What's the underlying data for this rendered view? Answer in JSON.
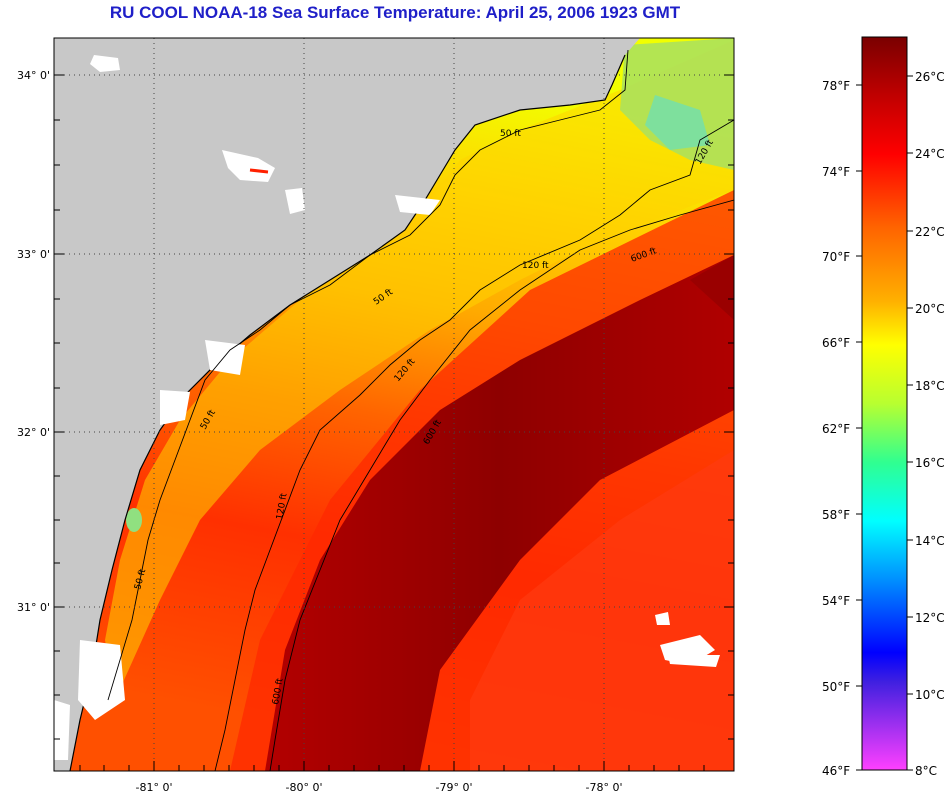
{
  "title": "RU COOL  NOAA-18  Sea Surface Temperature:  April 25, 2006 1923 GMT",
  "colors": {
    "land": "#c8c8c8",
    "cloud": "#ffffff",
    "contour": "#000000",
    "grid": "#555555",
    "title": "#1f1fc8"
  },
  "map": {
    "lon_ticks": [
      "-81° 0'",
      "-80° 0'",
      "-79° 0'",
      "-78° 0'"
    ],
    "lat_ticks": [
      "34° 0'",
      "33° 0'",
      "32° 0'",
      "31° 0'"
    ],
    "isobath_labels": [
      "50 ft",
      "120 ft",
      "600 ft"
    ]
  },
  "colorbar": {
    "fahrenheit": [
      "78°F",
      "74°F",
      "70°F",
      "66°F",
      "62°F",
      "58°F",
      "54°F",
      "50°F",
      "46°F"
    ],
    "celsius": [
      "26°C",
      "24°C",
      "22°C",
      "20°C",
      "18°C",
      "16°C",
      "14°C",
      "12°C",
      "10°C",
      "8°C"
    ]
  }
}
